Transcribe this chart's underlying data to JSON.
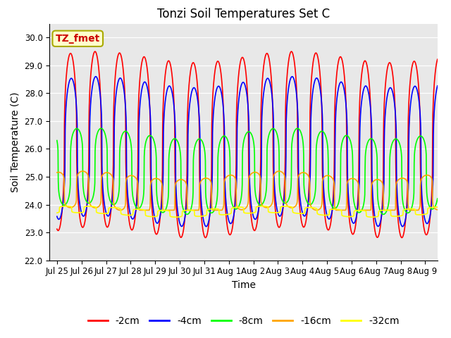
{
  "title": "Tonzi Soil Temperatures Set C",
  "xlabel": "Time",
  "ylabel": "Soil Temperature (C)",
  "ylim": [
    22.0,
    30.5
  ],
  "yticks": [
    22.0,
    23.0,
    24.0,
    25.0,
    26.0,
    27.0,
    28.0,
    29.0,
    30.0
  ],
  "series_colors": [
    "red",
    "blue",
    "lime",
    "orange",
    "yellow"
  ],
  "series_labels": [
    "-2cm",
    "-4cm",
    "-8cm",
    "-16cm",
    "-32cm"
  ],
  "series_linewidths": [
    1.2,
    1.2,
    1.2,
    1.2,
    1.2
  ],
  "annotation_text": "TZ_fmet",
  "annotation_color": "#cc0000",
  "annotation_bg": "#ffffcc",
  "annotation_border": "#aaaa00",
  "background_color": "#e8e8e8",
  "num_days": 15.5,
  "points_per_day": 96,
  "tick_label_fontsize": 8.5,
  "axis_label_fontsize": 10,
  "title_fontsize": 12
}
